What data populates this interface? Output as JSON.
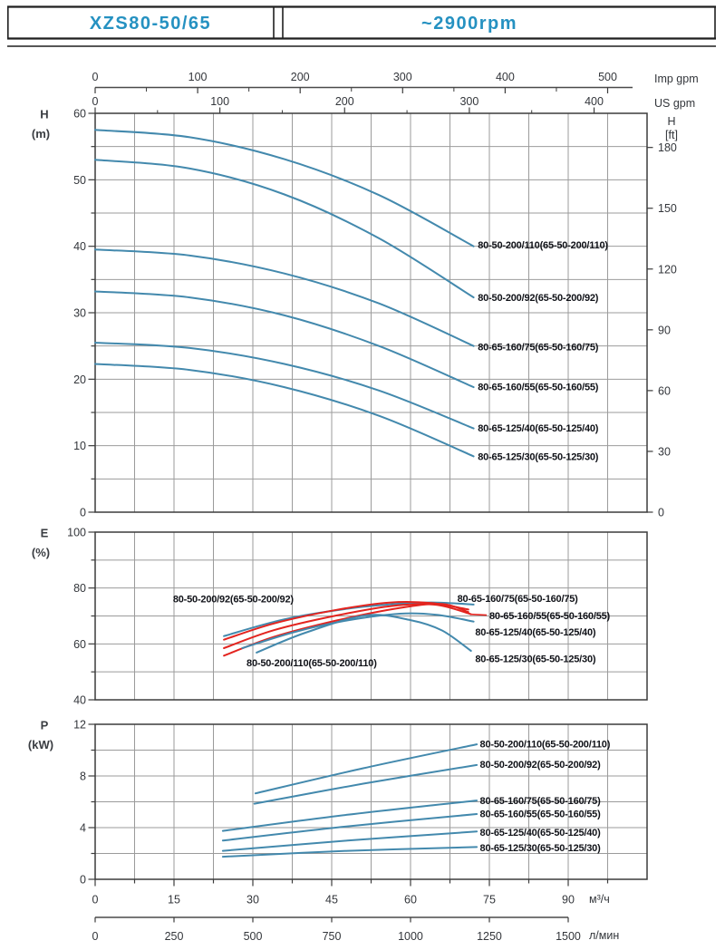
{
  "header": {
    "model": "XZS80-50/65",
    "speed": "~2900rpm"
  },
  "colors": {
    "accent": "#2591c1",
    "curve_blue": "#4389ad",
    "curve_red": "#e3241f",
    "grid": "#9b9b9b",
    "border": "#3c3c3c",
    "tick_text": "#33363b",
    "curve_label_text": "#101218"
  },
  "flow_axis": {
    "m3h": {
      "unit": "м³/ч",
      "major": [
        0,
        15,
        30,
        45,
        60,
        75,
        90
      ],
      "minor_step": 7.5,
      "max": 105
    },
    "lmin": {
      "unit": "л/мин",
      "major": [
        0,
        250,
        500,
        750,
        1000,
        1250,
        1500
      ]
    },
    "us_gpm": {
      "unit": "US gpm",
      "major": [
        0,
        100,
        200,
        300,
        400
      ]
    },
    "imp_gpm": {
      "unit": "Imp gpm",
      "major": [
        0,
        100,
        200,
        300,
        400,
        500
      ]
    }
  },
  "chart_data": [
    {
      "id": "head",
      "type": "line",
      "title": "Head vs flow",
      "xlabel": "Q (м³/ч)",
      "ylabel": "H",
      "yunit": "(m)",
      "right_axis": {
        "label": "H",
        "unit": "[ft]",
        "ticks": [
          0,
          30,
          60,
          90,
          120,
          150,
          180
        ]
      },
      "xlim": [
        0,
        105
      ],
      "ylim": [
        0,
        60
      ],
      "yticks": [
        0,
        10,
        20,
        30,
        40,
        50,
        60
      ],
      "grid": "on",
      "series": [
        {
          "name": "80-50-200/110(65-50-200/110)",
          "color": "blue",
          "points": [
            [
              0,
              57.5
            ],
            [
              18,
              56.4
            ],
            [
              36,
              53.1
            ],
            [
              54,
              47.7
            ],
            [
              72,
              40
            ]
          ],
          "label_at": [
            72.8,
            40.2
          ]
        },
        {
          "name": "80-50-200/92(65-50-200/92)",
          "color": "blue",
          "points": [
            [
              0,
              53
            ],
            [
              18,
              51.7
            ],
            [
              36,
              47.8
            ],
            [
              54,
              41.2
            ],
            [
              72,
              32.3
            ]
          ],
          "label_at": [
            72.8,
            32.3
          ]
        },
        {
          "name": "80-65-160/75(65-50-160/75)",
          "color": "blue",
          "points": [
            [
              0,
              39.5
            ],
            [
              18,
              38.6
            ],
            [
              36,
              35.9
            ],
            [
              54,
              31.4
            ],
            [
              72,
              25
            ]
          ],
          "label_at": [
            72.8,
            24.9
          ]
        },
        {
          "name": "80-65-160/55(65-50-160/55)",
          "color": "blue",
          "points": [
            [
              0,
              33.2
            ],
            [
              18,
              32.3
            ],
            [
              36,
              29.6
            ],
            [
              54,
              25
            ],
            [
              72,
              18.8
            ]
          ],
          "label_at": [
            72.8,
            18.9
          ]
        },
        {
          "name": "80-65-125/40(65-50-125/40)",
          "color": "blue",
          "points": [
            [
              0,
              25.5
            ],
            [
              18,
              24.7
            ],
            [
              36,
              22.3
            ],
            [
              54,
              18.3
            ],
            [
              72,
              12.6
            ]
          ],
          "label_at": [
            72.8,
            12.7
          ]
        },
        {
          "name": "80-65-125/30(65-50-125/30)",
          "color": "blue",
          "points": [
            [
              0,
              22.3
            ],
            [
              18,
              21.4
            ],
            [
              36,
              18.8
            ],
            [
              54,
              14.5
            ],
            [
              72,
              8.4
            ]
          ],
          "label_at": [
            72.8,
            8.4
          ]
        }
      ]
    },
    {
      "id": "eff",
      "type": "line",
      "title": "Efficiency vs flow",
      "xlabel": "Q (м³/ч)",
      "ylabel": "E",
      "yunit": "(%)",
      "xlim": [
        0,
        105
      ],
      "ylim": [
        40,
        100
      ],
      "yticks": [
        40,
        60,
        80,
        100
      ],
      "grid": "on",
      "series": [
        {
          "name": "80-65-160/75(65-50-160/75)",
          "color": "blue",
          "points": [
            [
              24.5,
              62.8
            ],
            [
              36,
              68.8
            ],
            [
              48,
              72.6
            ],
            [
              58,
              74.4
            ],
            [
              65,
              74.8
            ],
            [
              72,
              74.1
            ]
          ],
          "label_at": [
            68.9,
            76.4
          ]
        },
        {
          "name": "80-50-200/92(65-50-200/92)",
          "color": "red",
          "points": [
            [
              24.5,
              61.5
            ],
            [
              34,
              67.3
            ],
            [
              46,
              72.2
            ],
            [
              56,
              74.8
            ],
            [
              64,
              74.6
            ],
            [
              71,
              72.3
            ]
          ],
          "label_at": [
            14.8,
            76.2
          ]
        },
        {
          "name": "80-65-160/55(65-50-160/55)",
          "color": "red",
          "points": [
            [
              24.5,
              58.5
            ],
            [
              34,
              64.9
            ],
            [
              46,
              70.2
            ],
            [
              57,
              73.7
            ],
            [
              65,
              74
            ],
            [
              71.5,
              70.6
            ]
          ],
          "label_at": [
            75,
            70.1
          ],
          "leader": [
            [
              71.5,
              70.6
            ],
            [
              74.5,
              70.3
            ]
          ]
        },
        {
          "name": "80-50-200/110(65-50-200/110)",
          "color": "red",
          "points": [
            [
              24.5,
              55.8
            ],
            [
              34,
              62.5
            ],
            [
              46,
              68.4
            ],
            [
              58,
              72.9
            ],
            [
              66,
              74.3
            ],
            [
              71,
              71.4
            ]
          ],
          "label_at": [
            28.8,
            53.3
          ]
        },
        {
          "name": "80-65-125/40(65-50-125/40)",
          "color": "blue",
          "points": [
            [
              28,
              58.5
            ],
            [
              38,
              64.3
            ],
            [
              48,
              68.4
            ],
            [
              58,
              70.8
            ],
            [
              65,
              70.4
            ],
            [
              72,
              68
            ]
          ],
          "label_at": [
            72.3,
            64.3
          ]
        },
        {
          "name": "80-65-125/30(65-50-125/30)",
          "color": "blue",
          "points": [
            [
              30.7,
              56.9
            ],
            [
              40,
              64
            ],
            [
              51.5,
              70.2
            ],
            [
              60,
              68.5
            ],
            [
              66,
              64.8
            ],
            [
              71.5,
              57.5
            ]
          ],
          "label_at": [
            72.3,
            54.8
          ]
        }
      ]
    },
    {
      "id": "power",
      "type": "line",
      "title": "Power vs flow",
      "xlabel": "Q (м³/ч)",
      "ylabel": "P",
      "yunit": "(kW)",
      "xlim": [
        0,
        105
      ],
      "ylim": [
        0,
        12
      ],
      "yticks": [
        0,
        4,
        8,
        12
      ],
      "grid": "on",
      "series": [
        {
          "name": "80-50-200/110(65-50-200/110)",
          "color": "blue",
          "points": [
            [
              30.5,
              6.65
            ],
            [
              51,
              8.6
            ],
            [
              72.6,
              10.45
            ]
          ],
          "label_at": [
            73.2,
            10.5
          ]
        },
        {
          "name": "80-50-200/92(65-50-200/92)",
          "color": "blue",
          "points": [
            [
              30.3,
              5.85
            ],
            [
              51,
              7.4
            ],
            [
              72.6,
              8.85
            ]
          ],
          "label_at": [
            73.2,
            8.9
          ]
        },
        {
          "name": "80-65-160/75(65-50-160/75)",
          "color": "blue",
          "points": [
            [
              24.3,
              3.75
            ],
            [
              48,
              5
            ],
            [
              72.6,
              6.1
            ]
          ],
          "label_at": [
            73.2,
            6.1
          ]
        },
        {
          "name": "80-65-160/55(65-50-160/55)",
          "color": "blue",
          "points": [
            [
              24.3,
              3
            ],
            [
              48,
              4.1
            ],
            [
              72.6,
              5.05
            ]
          ],
          "label_at": [
            73.2,
            5.1
          ]
        },
        {
          "name": "80-65-125/40(65-50-125/40)",
          "color": "blue",
          "points": [
            [
              24.3,
              2.2
            ],
            [
              48,
              3
            ],
            [
              72.6,
              3.7
            ]
          ],
          "label_at": [
            73.2,
            3.65
          ]
        },
        {
          "name": "80-65-125/30(65-50-125/30)",
          "color": "blue",
          "points": [
            [
              24.3,
              1.75
            ],
            [
              48,
              2.2
            ],
            [
              72.6,
              2.5
            ]
          ],
          "label_at": [
            73.2,
            2.45
          ]
        }
      ]
    }
  ]
}
